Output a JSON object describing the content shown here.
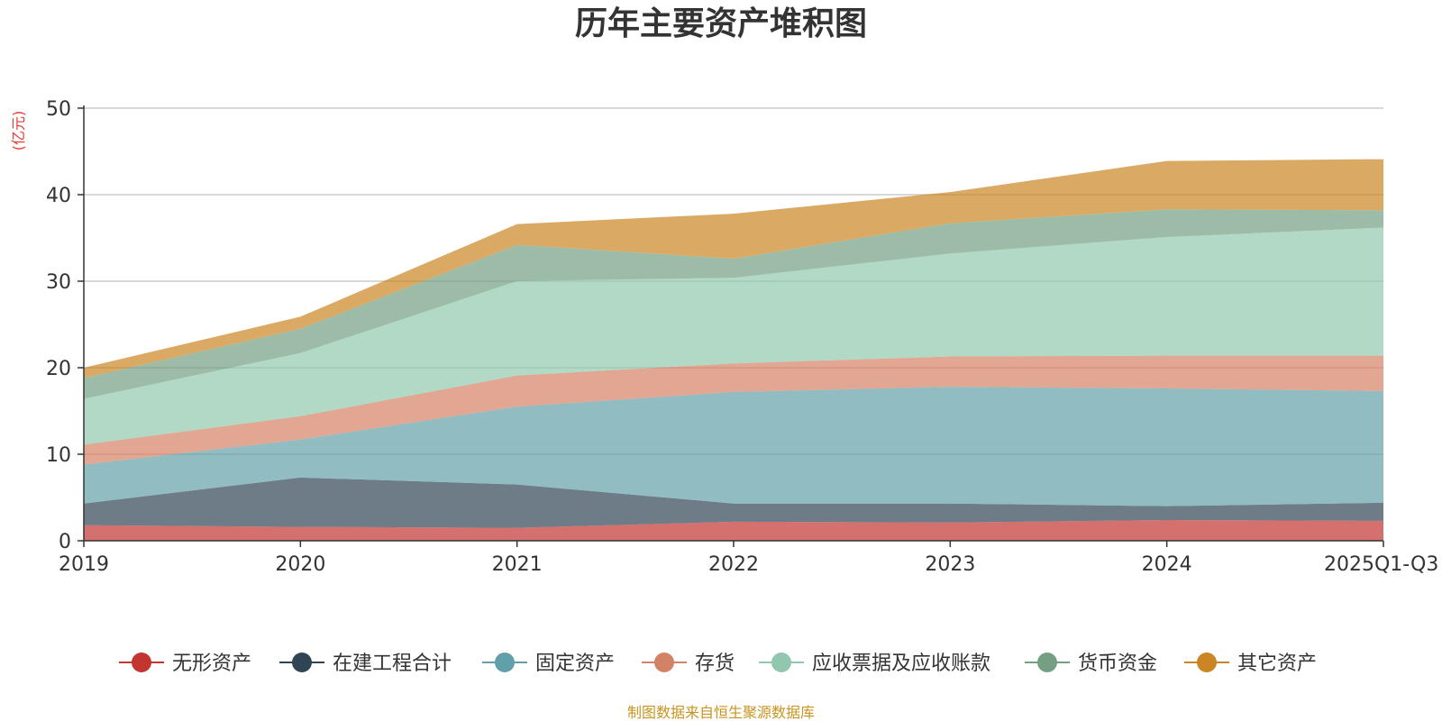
{
  "colors": {
    "无形资产": "#c23531",
    "在建工程合计": "#2f4554",
    "固定资产": "#61a0a8",
    "存货": "#d48265",
    "应收票据及应收账款": "#91c7ae",
    "货币资金": "#749f83",
    "其它资产": "#ca8622"
  },
  "chart_data": {
    "type": "area",
    "stacked": true,
    "title": "历年主要资产堆积图",
    "unit_label": "(亿元)",
    "source_note": "制图数据来自恒生聚源数据库",
    "categories": [
      "2019",
      "2020",
      "2021",
      "2022",
      "2023",
      "2024",
      "2025Q1-Q3"
    ],
    "ylim": [
      0,
      50
    ],
    "yticks": [
      0,
      10,
      20,
      30,
      40,
      50
    ],
    "grid": true,
    "legend_position": "bottom",
    "series": [
      {
        "name": "无形资产",
        "values": [
          1.8,
          1.6,
          1.5,
          2.2,
          2.1,
          2.4,
          2.3
        ]
      },
      {
        "name": "在建工程合计",
        "values": [
          2.5,
          5.7,
          5.0,
          2.1,
          2.2,
          1.6,
          2.1
        ]
      },
      {
        "name": "固定资产",
        "values": [
          4.5,
          4.4,
          9.0,
          12.9,
          13.5,
          13.6,
          12.9
        ]
      },
      {
        "name": "存货",
        "values": [
          2.3,
          2.7,
          3.6,
          3.3,
          3.5,
          3.8,
          4.1
        ]
      },
      {
        "name": "应收票据及应收账款",
        "values": [
          5.3,
          7.3,
          10.9,
          9.9,
          11.9,
          13.7,
          14.8
        ]
      },
      {
        "name": "货币资金",
        "values": [
          2.4,
          2.8,
          4.2,
          2.2,
          3.5,
          3.2,
          2.0
        ]
      },
      {
        "name": "其它资产",
        "values": [
          1.2,
          1.4,
          2.4,
          5.2,
          3.6,
          5.6,
          5.9
        ]
      }
    ]
  }
}
